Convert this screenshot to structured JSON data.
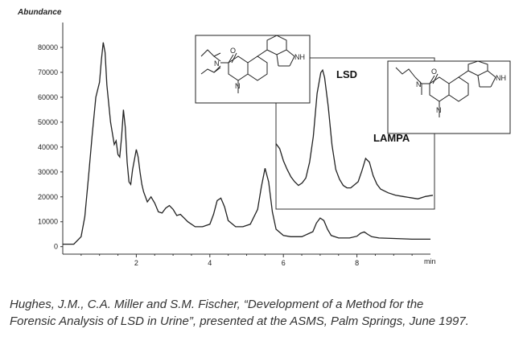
{
  "chart_data": {
    "type": "line",
    "title": "",
    "ylabel": "Abundance",
    "xlabel": "min",
    "xlim": [
      0,
      10
    ],
    "ylim": [
      -3000,
      90000
    ],
    "y_ticks": [
      0,
      10000,
      20000,
      30000,
      40000,
      50000,
      60000,
      70000,
      80000
    ],
    "x_ticks": [
      2,
      4,
      6,
      8
    ],
    "series": [
      {
        "x": [
          0.0,
          0.3,
          0.5,
          0.6,
          0.7,
          0.8,
          0.9,
          1.0,
          1.05,
          1.1,
          1.15,
          1.2,
          1.3,
          1.4,
          1.45,
          1.5,
          1.55,
          1.6,
          1.65,
          1.7,
          1.75,
          1.8,
          1.85,
          1.9,
          2.0,
          2.05,
          2.1,
          2.15,
          2.2,
          2.3,
          2.4,
          2.5,
          2.6,
          2.7,
          2.8,
          2.9,
          3.0,
          3.1,
          3.2,
          3.3,
          3.4,
          3.6,
          3.8,
          4.0,
          4.1,
          4.2,
          4.3,
          4.4,
          4.5,
          4.7,
          4.9,
          5.1,
          5.3,
          5.4,
          5.5,
          5.6,
          5.7,
          5.8,
          6.0,
          6.2,
          6.5,
          6.8,
          6.9,
          7.0,
          7.1,
          7.2,
          7.3,
          7.5,
          7.8,
          8.0,
          8.1,
          8.2,
          8.3,
          8.4,
          8.6,
          9.0,
          9.5,
          10.0
        ],
        "y": [
          1000,
          1000,
          4000,
          12000,
          28000,
          45000,
          60000,
          66000,
          75000,
          82000,
          78000,
          65000,
          50000,
          41000,
          42500,
          37000,
          36000,
          44000,
          55000,
          48000,
          34000,
          26000,
          25000,
          31000,
          39000,
          36000,
          30000,
          25000,
          22000,
          18000,
          20000,
          17500,
          14000,
          13500,
          15500,
          16500,
          15000,
          12500,
          13000,
          11500,
          10000,
          8000,
          8000,
          9000,
          13000,
          18500,
          19500,
          16000,
          10500,
          8000,
          8000,
          9000,
          15000,
          24000,
          31500,
          26000,
          14000,
          7000,
          4500,
          4000,
          4000,
          6000,
          9500,
          11500,
          10500,
          7000,
          4500,
          3500,
          3500,
          4200,
          5400,
          5900,
          4900,
          4000,
          3500,
          3300,
          3000,
          3000
        ]
      }
    ],
    "inset": {
      "xlim": [
        5.8,
        10
      ],
      "ylim": [
        12000,
        72000
      ],
      "x": [
        5.8,
        5.9,
        6.0,
        6.1,
        6.2,
        6.3,
        6.4,
        6.5,
        6.6,
        6.7,
        6.8,
        6.9,
        7.0,
        7.05,
        7.1,
        7.2,
        7.3,
        7.4,
        7.5,
        7.6,
        7.7,
        7.8,
        8.0,
        8.1,
        8.2,
        8.3,
        8.4,
        8.5,
        8.6,
        8.8,
        9.0,
        9.2,
        9.4,
        9.6,
        9.8,
        10.0
      ],
      "y": [
        38000,
        36000,
        31000,
        27500,
        24500,
        22500,
        21000,
        22000,
        24000,
        30500,
        41000,
        58500,
        67000,
        68000,
        65000,
        53000,
        37500,
        27500,
        23500,
        21000,
        20000,
        20000,
        22500,
        27000,
        32000,
        30500,
        25000,
        21500,
        19500,
        18000,
        17000,
        16500,
        16000,
        15500,
        16500,
        17000
      ]
    },
    "annotations": [
      "LSD",
      "LAMPA"
    ]
  },
  "caption": {
    "line1": "Hughes, J.M., C.A. Miller and S.M. Fischer, “Development of a Method for the",
    "line2": "Forensic Analysis of LSD in Urine”, presented at the ASMS, Palm Springs, June 1997."
  },
  "structures": {
    "lsd_nh": "NH",
    "lsd_n": "N",
    "lsd_o": "O",
    "lampa_nh": "NH",
    "lampa_n": "N",
    "lampa_o": "O"
  }
}
